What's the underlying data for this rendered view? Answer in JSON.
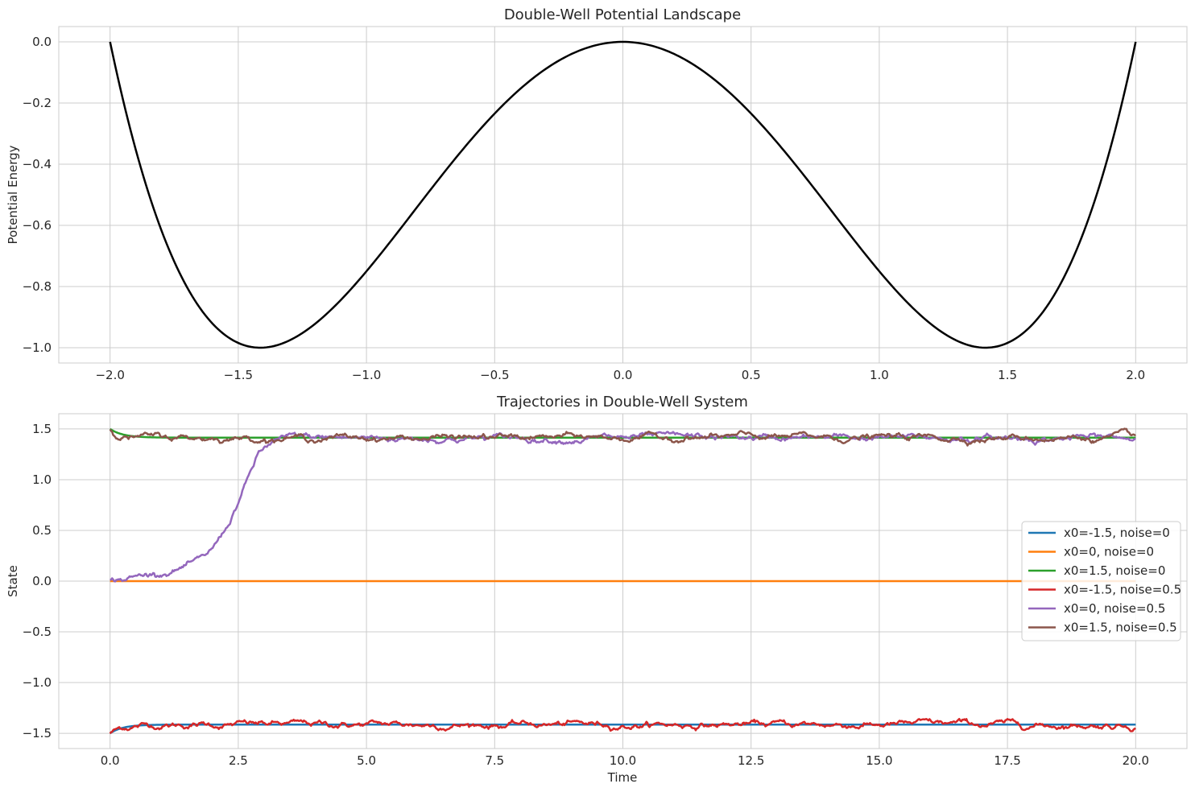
{
  "chart_data": [
    {
      "type": "line",
      "title": "Double-Well Potential Landscape",
      "xlabel": "",
      "ylabel": "Potential Energy",
      "xlim": [
        -2.2,
        2.2
      ],
      "ylim": [
        -1.05,
        0.05
      ],
      "xticks": [
        -2.0,
        -1.5,
        -1.0,
        -0.5,
        0.0,
        0.5,
        1.0,
        1.5,
        2.0
      ],
      "xtick_labels": [
        "−2.0",
        "−1.5",
        "−1.0",
        "−0.5",
        "0.0",
        "0.5",
        "1.0",
        "1.5",
        "2.0"
      ],
      "yticks": [
        0.0,
        -0.2,
        -0.4,
        -0.6,
        -0.8,
        -1.0
      ],
      "ytick_labels": [
        "0.0",
        "−0.2",
        "−0.4",
        "−0.6",
        "−0.8",
        "−1.0"
      ],
      "grid": true,
      "series": [
        {
          "color": "#000000",
          "function": "x^4/4 - x^2",
          "x_range": [
            -2.0,
            2.0
          ]
        }
      ]
    },
    {
      "type": "line",
      "title": "Trajectories in Double-Well System",
      "xlabel": "Time",
      "ylabel": "State",
      "xlim": [
        -1.0,
        21.0
      ],
      "ylim": [
        -1.65,
        1.65
      ],
      "xticks": [
        0.0,
        2.5,
        5.0,
        7.5,
        10.0,
        12.5,
        15.0,
        17.5,
        20.0
      ],
      "xtick_labels": [
        "0.0",
        "2.5",
        "5.0",
        "7.5",
        "10.0",
        "12.5",
        "15.0",
        "17.5",
        "20.0"
      ],
      "yticks": [
        1.5,
        1.0,
        0.5,
        0.0,
        -0.5,
        -1.0,
        -1.5
      ],
      "ytick_labels": [
        "1.5",
        "1.0",
        "0.5",
        "0.0",
        "−0.5",
        "−1.0",
        "−1.5"
      ],
      "grid": true,
      "legend_position": "center-right",
      "series": [
        {
          "name": "x0=-1.5, noise=0",
          "color": "#1f77b4",
          "x0": -1.5,
          "noise": 0,
          "settles_to": -1.414
        },
        {
          "name": "x0=0, noise=0",
          "color": "#ff7f0e",
          "x0": 0,
          "noise": 0,
          "settles_to": 0
        },
        {
          "name": "x0=1.5, noise=0",
          "color": "#2ca02c",
          "x0": 1.5,
          "noise": 0,
          "settles_to": 1.414
        },
        {
          "name": "x0=-1.5, noise=0.5",
          "color": "#d62728",
          "x0": -1.5,
          "noise": 0.5,
          "settles_to": -1.414
        },
        {
          "name": "x0=0, noise=0.5",
          "color": "#9467bd",
          "x0": 0,
          "noise": 0.5,
          "settles_to": 1.414,
          "transition_points": [
            [
              0,
              0
            ],
            [
              0.5,
              0.04
            ],
            [
              1.0,
              0.09
            ],
            [
              1.5,
              0.15
            ],
            [
              1.8,
              0.2
            ],
            [
              2.0,
              0.3
            ],
            [
              2.3,
              0.55
            ],
            [
              2.6,
              0.9
            ],
            [
              2.9,
              1.25
            ],
            [
              3.2,
              1.38
            ],
            [
              3.6,
              1.41
            ]
          ]
        },
        {
          "name": "x0=1.5, noise=0.5",
          "color": "#8c564b",
          "x0": 1.5,
          "noise": 0.5,
          "settles_to": 1.414
        }
      ],
      "t_range": [
        0,
        20
      ]
    }
  ]
}
